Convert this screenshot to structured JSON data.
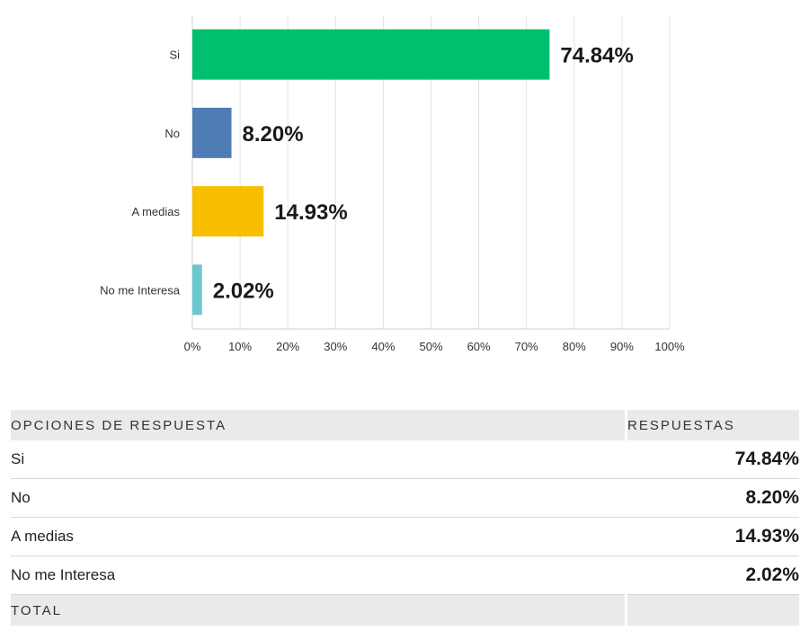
{
  "chart_data": {
    "type": "bar",
    "orientation": "horizontal",
    "categories": [
      "Si",
      "No",
      "A medias",
      "No me Interesa"
    ],
    "values": [
      74.84,
      8.2,
      14.93,
      2.02
    ],
    "data_labels": [
      "74.84%",
      "8.20%",
      "14.93%",
      "2.02%"
    ],
    "colors": [
      "#00bf6f",
      "#507cb6",
      "#f8be00",
      "#6bc8cd"
    ],
    "xlim": [
      0,
      100
    ],
    "x_ticks": [
      0,
      10,
      20,
      30,
      40,
      50,
      60,
      70,
      80,
      90,
      100
    ],
    "x_tick_labels": [
      "0%",
      "10%",
      "20%",
      "30%",
      "40%",
      "50%",
      "60%",
      "70%",
      "80%",
      "90%",
      "100%"
    ],
    "grid": true,
    "title": "",
    "xlabel": "",
    "ylabel": ""
  },
  "table": {
    "header_option": "OPCIONES DE RESPUESTA",
    "header_responses": "RESPUESTAS",
    "rows": [
      {
        "option": "Si",
        "value": "74.84%"
      },
      {
        "option": "No",
        "value": "8.20%"
      },
      {
        "option": "A medias",
        "value": "14.93%"
      },
      {
        "option": "No me Interesa",
        "value": "2.02%"
      }
    ],
    "total_label": "TOTAL",
    "total_value": ""
  }
}
